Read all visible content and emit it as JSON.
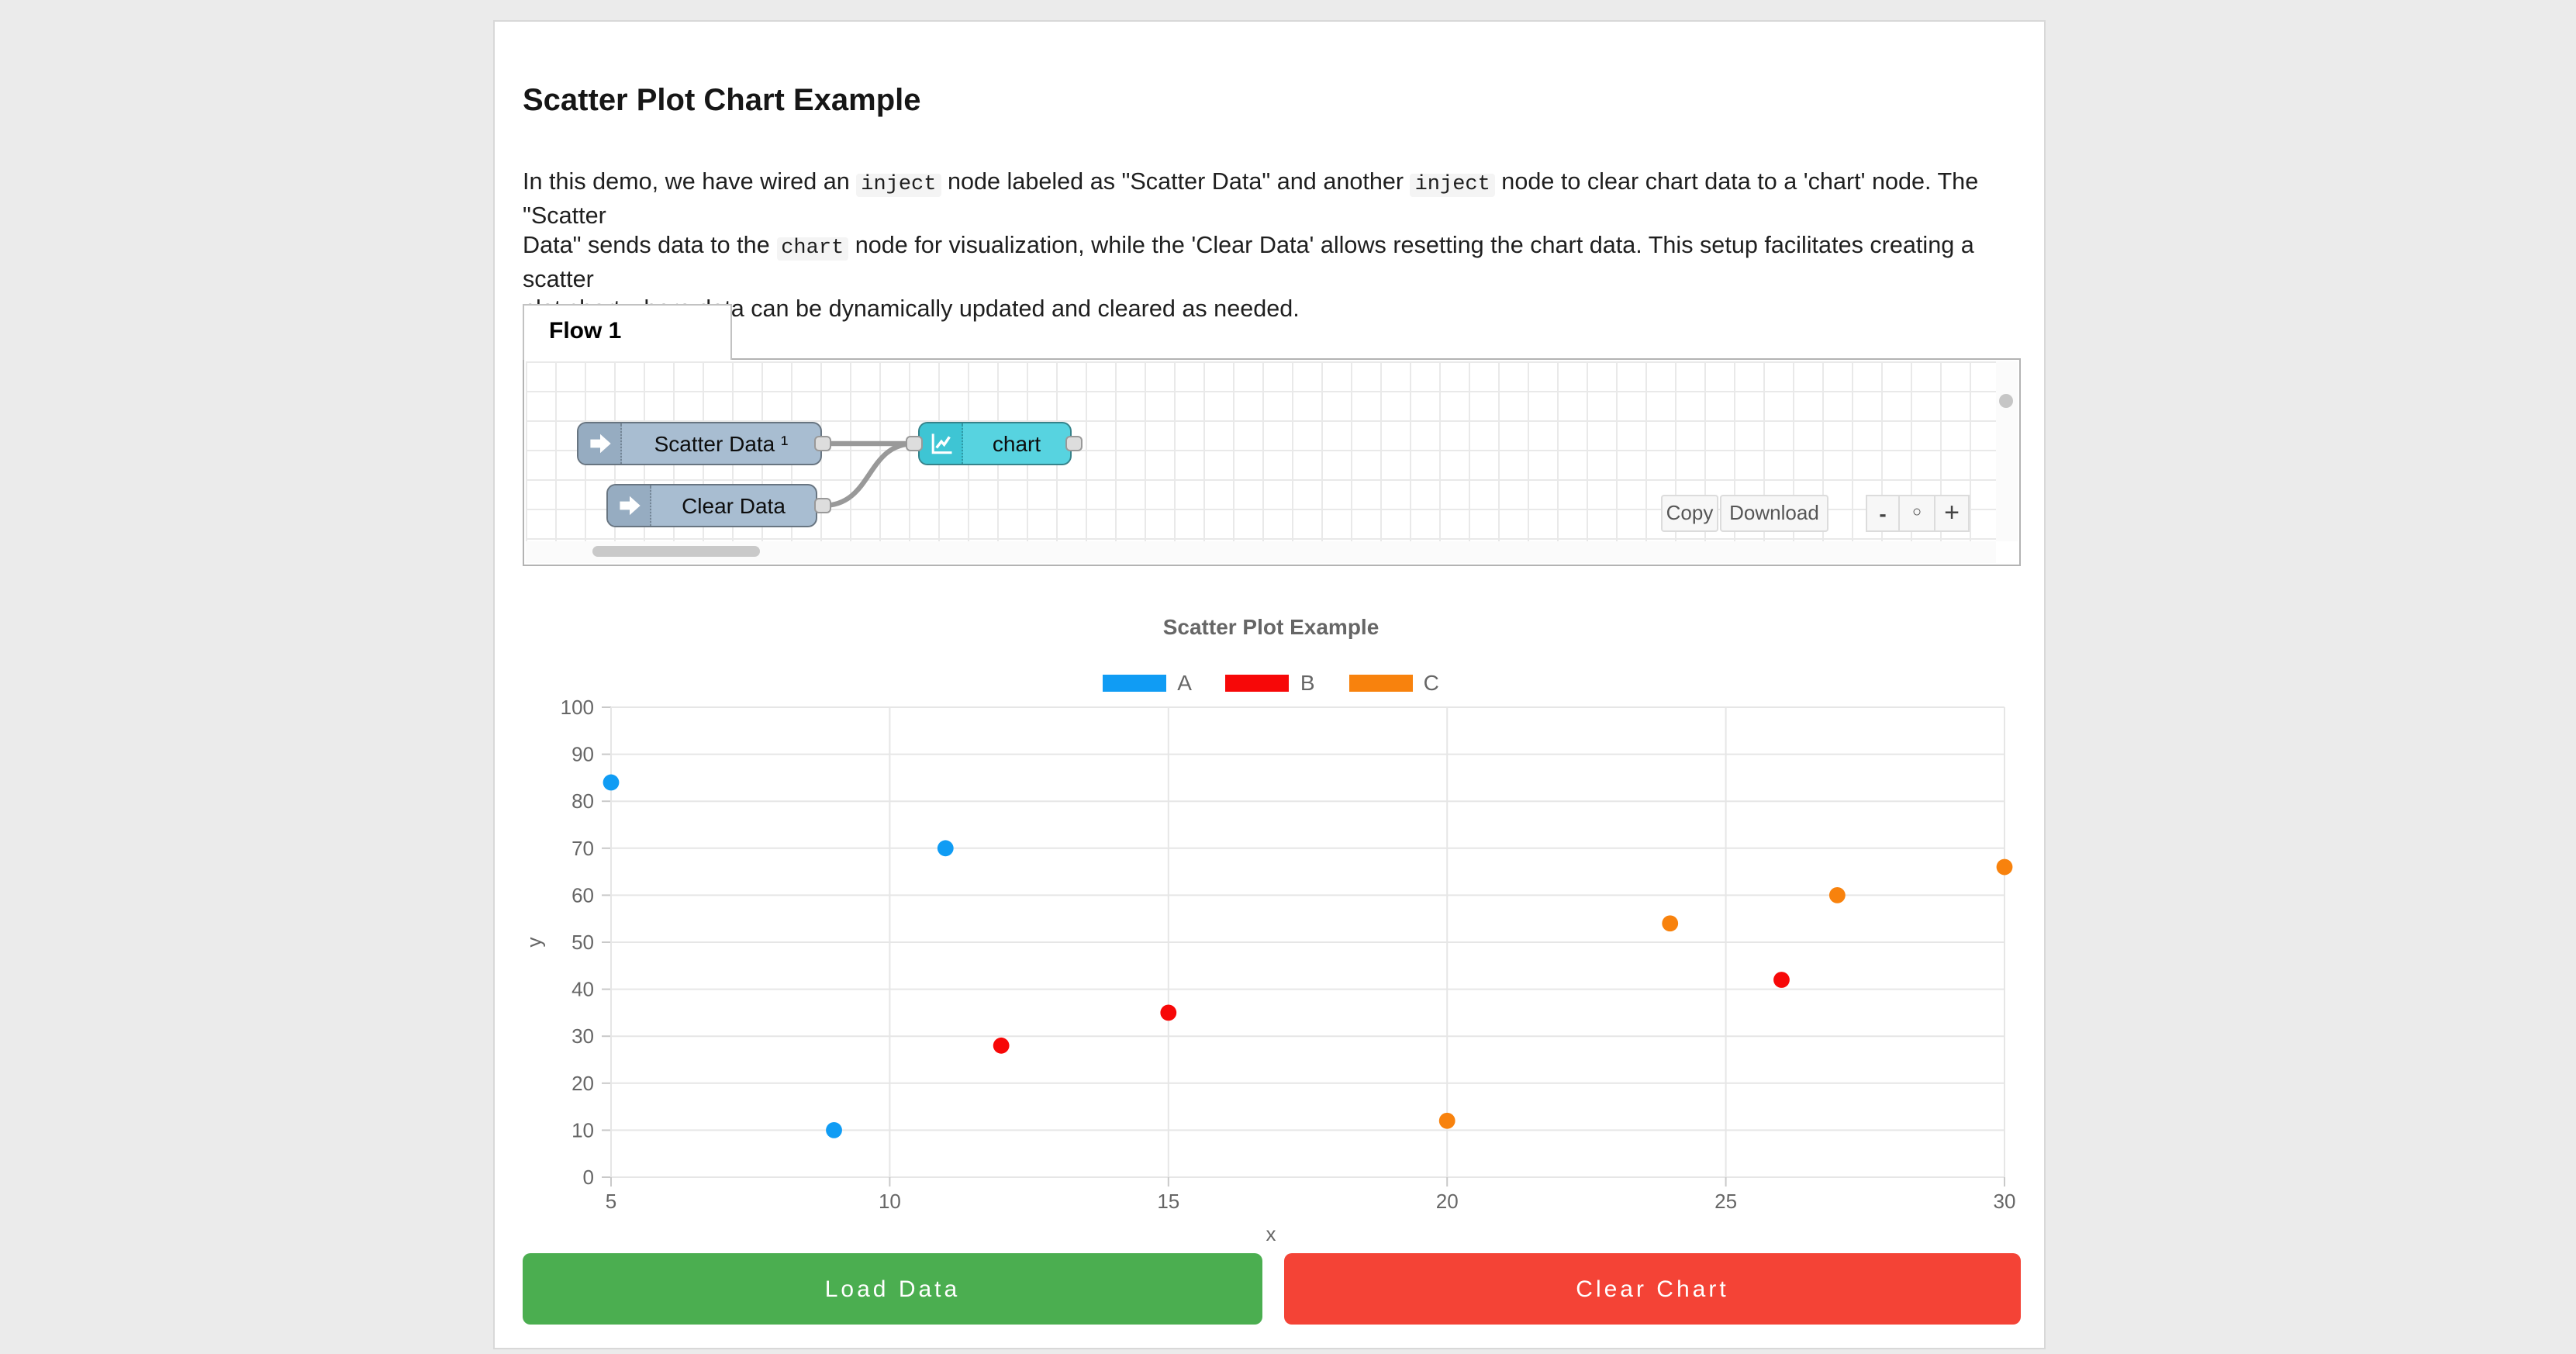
{
  "page": {
    "title": "Scatter Plot Chart Example"
  },
  "intro": {
    "lines": [
      [
        {
          "t": "In this demo, we have wired an "
        },
        {
          "code": "inject"
        },
        {
          "t": " node labeled as \"Scatter Data\" and another "
        },
        {
          "code": "inject"
        },
        {
          "t": " node to clear chart data to a 'chart' node. The \"Scatter"
        }
      ],
      [
        {
          "t": "Data\" sends data to the "
        },
        {
          "code": "chart"
        },
        {
          "t": " node for visualization, while the 'Clear Data' allows resetting the chart data. This setup facilitates creating a scatter"
        }
      ],
      [
        {
          "t": "plot chart where data can be dynamically updated and cleared as needed."
        }
      ]
    ]
  },
  "flow_editor": {
    "tab_label": "Flow 1",
    "nodes": [
      {
        "label": "Scatter Data ¹",
        "type": "inject",
        "color": "#a8bdd1",
        "icon_color": "#96acc1",
        "icon": "arrow-right-icon"
      },
      {
        "label": "Clear Data",
        "type": "inject",
        "color": "#a8bdd1",
        "icon_color": "#96acc1",
        "icon": "arrow-right-icon"
      },
      {
        "label": "chart",
        "type": "chart",
        "color": "#57d3e0",
        "icon_color": "#3ec5d4",
        "icon": "line-chart-icon"
      }
    ],
    "toolbar": {
      "copy_label": "Copy",
      "download_label": "Download"
    },
    "zoom_controls": {
      "zoom_out": "-",
      "zoom_reset": "○",
      "zoom_in": "+"
    }
  },
  "chart_data": {
    "type": "scatter",
    "title": "Scatter Plot Example",
    "xlabel": "x",
    "ylabel": "y",
    "xlim": [
      5,
      30
    ],
    "ylim": [
      0,
      100
    ],
    "xticks": [
      5,
      10,
      15,
      20,
      25,
      30
    ],
    "yticks": [
      0,
      10,
      20,
      30,
      40,
      50,
      60,
      70,
      80,
      90,
      100
    ],
    "grid": true,
    "legend_position": "top-center",
    "series": [
      {
        "name": "A",
        "color": "#109cf4",
        "points": [
          [
            5,
            84
          ],
          [
            9,
            10
          ],
          [
            11,
            70
          ]
        ]
      },
      {
        "name": "B",
        "color": "#f70808",
        "points": [
          [
            12,
            28
          ],
          [
            15,
            35
          ],
          [
            26,
            42
          ]
        ]
      },
      {
        "name": "C",
        "color": "#f8820d",
        "points": [
          [
            20,
            12
          ],
          [
            24,
            54
          ],
          [
            27,
            60
          ],
          [
            30,
            66
          ]
        ]
      }
    ]
  },
  "actions": {
    "load": {
      "label": "Load Data",
      "color": "#4bae50"
    },
    "clear": {
      "label": "Clear Chart",
      "color": "#f44336"
    }
  }
}
